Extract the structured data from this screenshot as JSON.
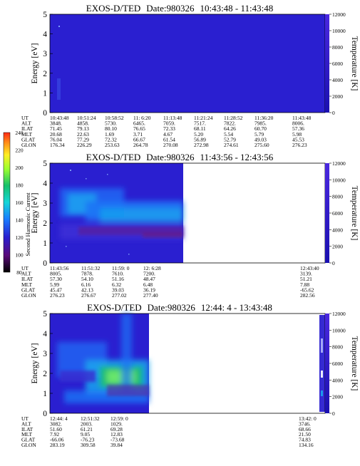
{
  "chart_data": [
    {
      "type": "heatmap",
      "title": "EXOS-D/TED",
      "date_label": "Date:980326",
      "time_range": "10:43:48 - 11:43:48",
      "ylabel": "Energy [eV]",
      "y_ticks": [
        "5",
        "4",
        "3",
        "2",
        "1",
        "0"
      ],
      "ylim": [
        0,
        5
      ],
      "right_label": "Temperature [K]",
      "right_ticks": [
        "12000",
        "10000",
        "8000",
        "6000",
        "4000",
        "2000",
        "0"
      ],
      "right_lim": [
        0,
        12000
      ],
      "orbit_labels": [
        "UT",
        "ALT",
        "ILAT",
        "MLT",
        "GLAT",
        "GLON"
      ],
      "orbit_columns": [
        [
          "10:43:48",
          "3848.",
          "71.45",
          "20.68",
          "76.04",
          "176.34"
        ],
        [
          "10:51:24",
          "4858.",
          "79.13",
          "22.63",
          "77.29",
          "226.29"
        ],
        [
          "10:58:52",
          "5730.",
          "80.10",
          "1.69",
          "72.32",
          "253.63"
        ],
        [
          "11: 6:20",
          "6465.",
          "76.65",
          "3.71",
          "66.67",
          "264.78"
        ],
        [
          "11:13:48",
          "7059.",
          "72.33",
          "4.67",
          "61.54",
          "270.08"
        ],
        [
          "11:21:24",
          "7517.",
          "68.11",
          "5.20",
          "56.89",
          "272.98"
        ],
        [
          "11:28:52",
          "7822.",
          "64.26",
          "5.54",
          "52.79",
          "274.61"
        ],
        [
          "11:36:20",
          "7985.",
          "60.70",
          "5.79",
          "49.03",
          "275.60"
        ],
        [
          "11:43:48",
          "8006.",
          "57.36",
          "5.98",
          "45.53",
          "276.23"
        ]
      ]
    },
    {
      "type": "heatmap",
      "title": "EXOS-D/TED",
      "date_label": "Date:980326",
      "time_range": "11:43:56 - 12:43:56",
      "ylabel": "Energy [eV]",
      "y_ticks": [
        "5",
        "4",
        "3",
        "2",
        "1",
        "0"
      ],
      "ylim": [
        0,
        5
      ],
      "right_label": "Temperature [K]",
      "right_ticks": [
        "12000",
        "10000",
        "8000",
        "6000",
        "4000",
        "2000",
        "0"
      ],
      "right_lim": [
        0,
        12000
      ],
      "colorbar_label": "Second Harmonic Current",
      "colorbar_ticks": [
        "240",
        "220",
        "200",
        "180",
        "160",
        "140",
        "120",
        "100",
        "80"
      ],
      "colorbar_lim": [
        80,
        240
      ],
      "orbit_labels": [
        "UT",
        "ALT",
        "ILAT",
        "MLT",
        "GLAT",
        "GLON"
      ],
      "orbit_columns": [
        [
          "11:43:56",
          "8005.",
          "57.30",
          "5.99",
          "45.47",
          "276.23"
        ],
        [
          "11:51:32",
          "7878.",
          "54.10",
          "6.16",
          "42.13",
          "276.67"
        ],
        [
          "11:59: 0",
          "7610.",
          "51.16",
          "6.32",
          "39.03",
          "277.02"
        ],
        [
          "12: 6:28",
          "7200.",
          "48.47",
          "6.48",
          "36.19",
          "277.40"
        ],
        [
          "12:43:40",
          "3139.",
          "51.21",
          "7.88",
          "-65.62",
          "282.56"
        ]
      ]
    },
    {
      "type": "heatmap",
      "title": "EXOS-D/TED",
      "date_label": "Date:980326",
      "time_range": "12:44: 4 - 13:43:48",
      "ylabel": "Energy [eV]",
      "y_ticks": [
        "5",
        "4",
        "3",
        "2",
        "1",
        "0"
      ],
      "ylim": [
        0,
        5
      ],
      "right_label": "Temperature [K]",
      "right_ticks": [
        "12000",
        "10000",
        "8000",
        "6000",
        "4000",
        "2000",
        "0"
      ],
      "right_lim": [
        0,
        12000
      ],
      "orbit_labels": [
        "UT",
        "ALT",
        "ILAT",
        "MLT",
        "GLAT",
        "GLON"
      ],
      "orbit_columns": [
        [
          "12:44: 4",
          "3082.",
          "51.60",
          "7.92",
          "-66.06",
          "283.19"
        ],
        [
          "12:51:32",
          "2003.",
          "61.21",
          "9.05",
          "-76.23",
          "309.58"
        ],
        [
          "12:59: 0",
          "1029.",
          "69.28",
          "12.83",
          "-73.68",
          "39.84"
        ],
        [
          "13:42: 0",
          "3746.",
          "68.66",
          "21.50",
          "74.83",
          "134.16"
        ]
      ]
    }
  ],
  "colors": {
    "background_field": "#2a1fd0",
    "white": "#ffffff"
  }
}
